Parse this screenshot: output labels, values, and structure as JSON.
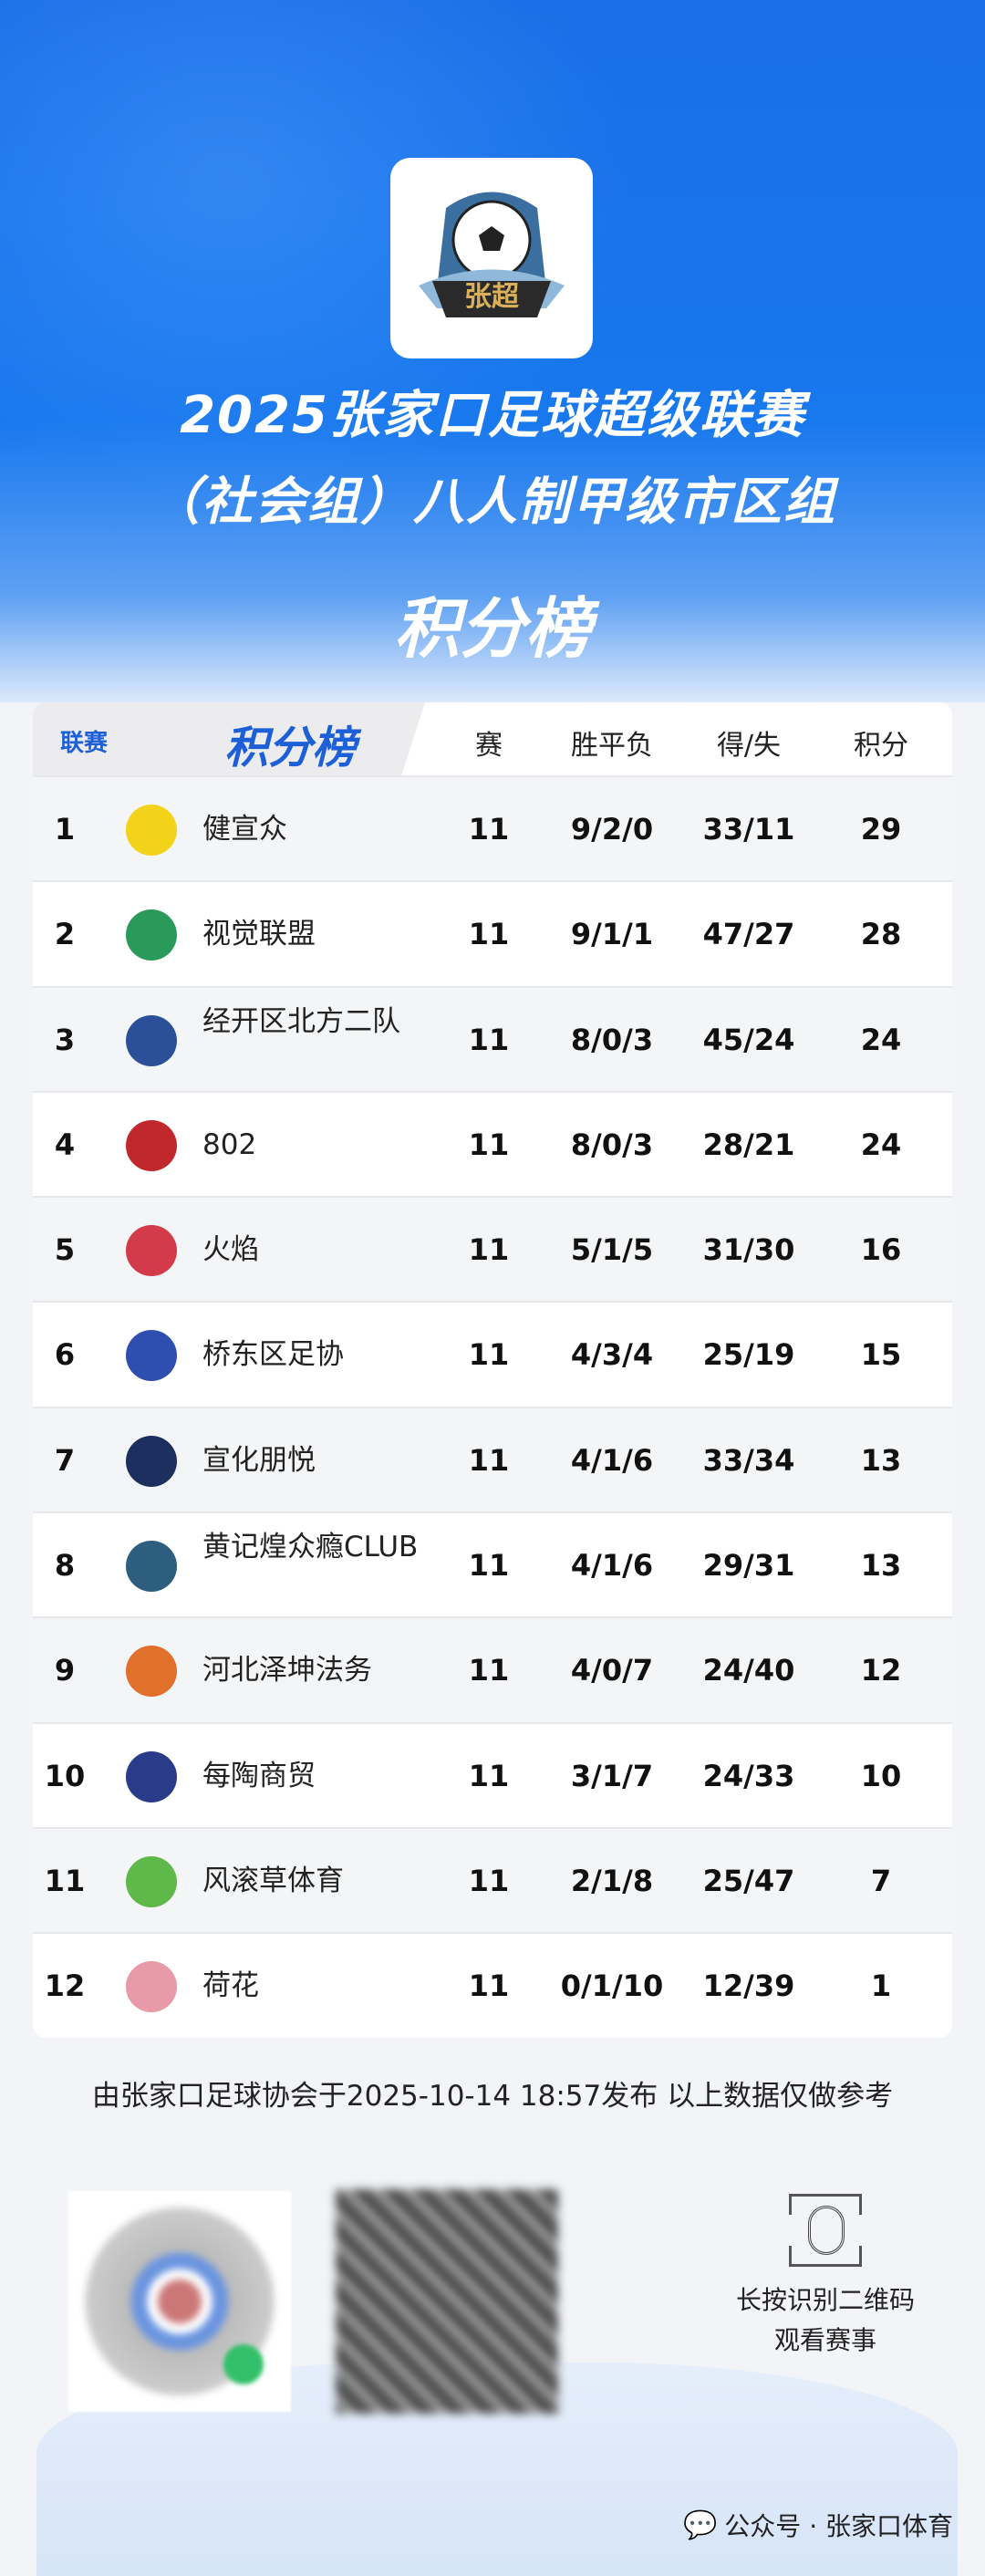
{
  "header": {
    "logo_text": "张超",
    "title_line1": "2025张家口足球超级联赛",
    "title_line2": "（社会组）八人制甲级市区组",
    "title_line3": "积分榜"
  },
  "table": {
    "header": {
      "league": "联赛",
      "title": "积分榜",
      "played": "赛",
      "wdl": "胜平负",
      "goals": "得/失",
      "points": "积分"
    },
    "rows": [
      {
        "rank": "1",
        "team": "健宣众",
        "played": "11",
        "wdl": "9/2/0",
        "goals": "33/11",
        "points": "29",
        "badge_color": "#f3d21a"
      },
      {
        "rank": "2",
        "team": "视觉联盟",
        "played": "11",
        "wdl": "9/1/1",
        "goals": "47/27",
        "points": "28",
        "badge_color": "#2a9a5a"
      },
      {
        "rank": "3",
        "team": "经开区北方二队",
        "played": "11",
        "wdl": "8/0/3",
        "goals": "45/24",
        "points": "24",
        "badge_color": "#2c4f9a"
      },
      {
        "rank": "4",
        "team": "802",
        "played": "11",
        "wdl": "8/0/3",
        "goals": "28/21",
        "points": "24",
        "badge_color": "#c0282e"
      },
      {
        "rank": "5",
        "team": "火焰",
        "played": "11",
        "wdl": "5/1/5",
        "goals": "31/30",
        "points": "16",
        "badge_color": "#d33a4a"
      },
      {
        "rank": "6",
        "team": "桥东区足协",
        "played": "11",
        "wdl": "4/3/4",
        "goals": "25/19",
        "points": "15",
        "badge_color": "#2f4fb0"
      },
      {
        "rank": "7",
        "team": "宣化朋悦",
        "played": "11",
        "wdl": "4/1/6",
        "goals": "33/34",
        "points": "13",
        "badge_color": "#1c2f5e"
      },
      {
        "rank": "8",
        "team": "黄记煌众瘾CLUB",
        "played": "11",
        "wdl": "4/1/6",
        "goals": "29/31",
        "points": "13",
        "badge_color": "#2d5e80"
      },
      {
        "rank": "9",
        "team": "河北泽坤法务",
        "played": "11",
        "wdl": "4/0/7",
        "goals": "24/40",
        "points": "12",
        "badge_color": "#e0702a"
      },
      {
        "rank": "10",
        "team": "每陶商贸",
        "played": "11",
        "wdl": "3/1/7",
        "goals": "24/33",
        "points": "10",
        "badge_color": "#2a3b8a"
      },
      {
        "rank": "11",
        "team": "风滚草体育",
        "played": "11",
        "wdl": "2/1/8",
        "goals": "25/47",
        "points": "7",
        "badge_color": "#5fb84a"
      },
      {
        "rank": "12",
        "team": "荷花",
        "played": "11",
        "wdl": "0/1/10",
        "goals": "12/39",
        "points": "1",
        "badge_color": "#e89aa8"
      }
    ]
  },
  "footer": {
    "note": "由张家口足球协会于2025-10-14 18:57发布 以上数据仅做参考",
    "scan_line1": "长按识别二维码",
    "scan_line2": "观看赛事",
    "watermark": "公众号 · 张家口体育"
  }
}
